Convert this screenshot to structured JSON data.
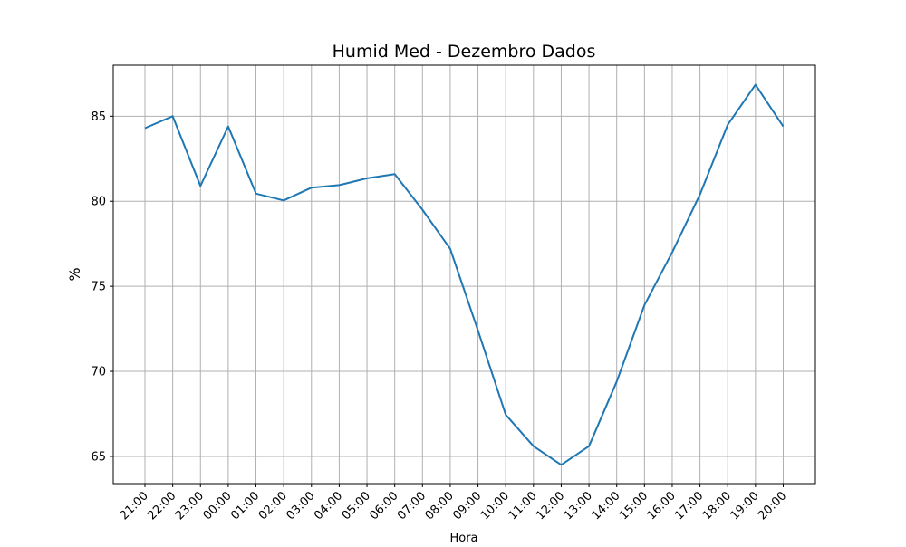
{
  "chart_data": {
    "type": "line",
    "title": "Humid Med - Dezembro Dados",
    "xlabel": "Hora",
    "ylabel": "%",
    "categories": [
      "21:00",
      "22:00",
      "23:00",
      "00:00",
      "01:00",
      "02:00",
      "03:00",
      "04:00",
      "05:00",
      "06:00",
      "07:00",
      "08:00",
      "09:00",
      "10:00",
      "11:00",
      "12:00",
      "13:00",
      "14:00",
      "15:00",
      "16:00",
      "17:00",
      "18:00",
      "19:00",
      "20:00"
    ],
    "series": [
      {
        "name": "",
        "color": "#1f77b4",
        "values": [
          84.3,
          85.0,
          80.9,
          84.4,
          80.45,
          80.05,
          80.8,
          80.95,
          81.35,
          81.6,
          79.5,
          77.2,
          72.4,
          67.45,
          65.6,
          64.5,
          65.6,
          69.4,
          73.9,
          77.0,
          80.4,
          84.5,
          86.85,
          84.4
        ]
      }
    ],
    "yticks": [
      65,
      70,
      75,
      80,
      85
    ],
    "ylim": [
      63.4,
      88.0
    ],
    "grid": true,
    "grid_color": "#b0b0b0"
  }
}
